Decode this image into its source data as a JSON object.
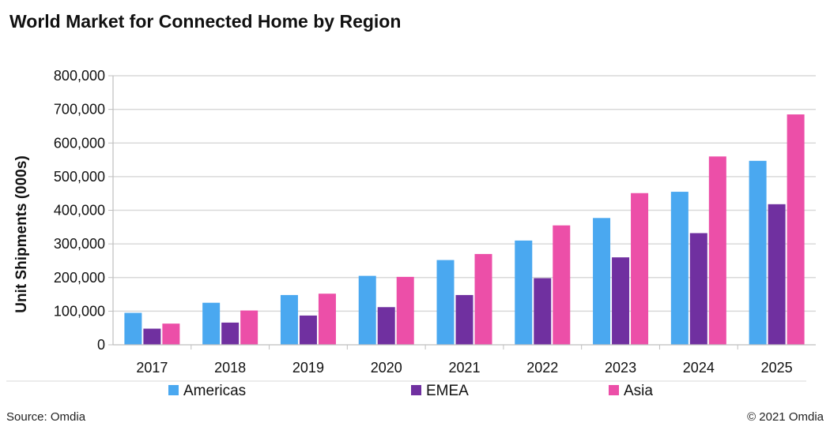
{
  "chart_data": {
    "type": "bar",
    "title": "World Market for Connected Home by Region",
    "xlabel": "",
    "ylabel": "Unit Shipments (000s)",
    "ylim": [
      0,
      800000
    ],
    "yticks": [
      0,
      100000,
      200000,
      300000,
      400000,
      500000,
      600000,
      700000,
      800000
    ],
    "ytick_labels": [
      "0",
      "100,000",
      "200,000",
      "300,000",
      "400,000",
      "500,000",
      "600,000",
      "700,000",
      "800,000"
    ],
    "grid": true,
    "legend_position": "bottom",
    "categories": [
      "2017",
      "2018",
      "2019",
      "2020",
      "2021",
      "2022",
      "2023",
      "2024",
      "2025"
    ],
    "series": [
      {
        "name": "Americas",
        "color": "#4aa8f0",
        "values": [
          95000,
          125000,
          148000,
          205000,
          252000,
          310000,
          377000,
          455000,
          547000
        ]
      },
      {
        "name": "EMEA",
        "color": "#7030a0",
        "values": [
          48000,
          66000,
          87000,
          112000,
          148000,
          198000,
          260000,
          332000,
          418000
        ]
      },
      {
        "name": "Asia",
        "color": "#ec4fa8",
        "values": [
          63000,
          102000,
          152000,
          202000,
          270000,
          355000,
          451000,
          560000,
          685000
        ]
      }
    ]
  },
  "footer": {
    "source": "Source: Omdia",
    "copyright": "© 2021 Omdia"
  }
}
